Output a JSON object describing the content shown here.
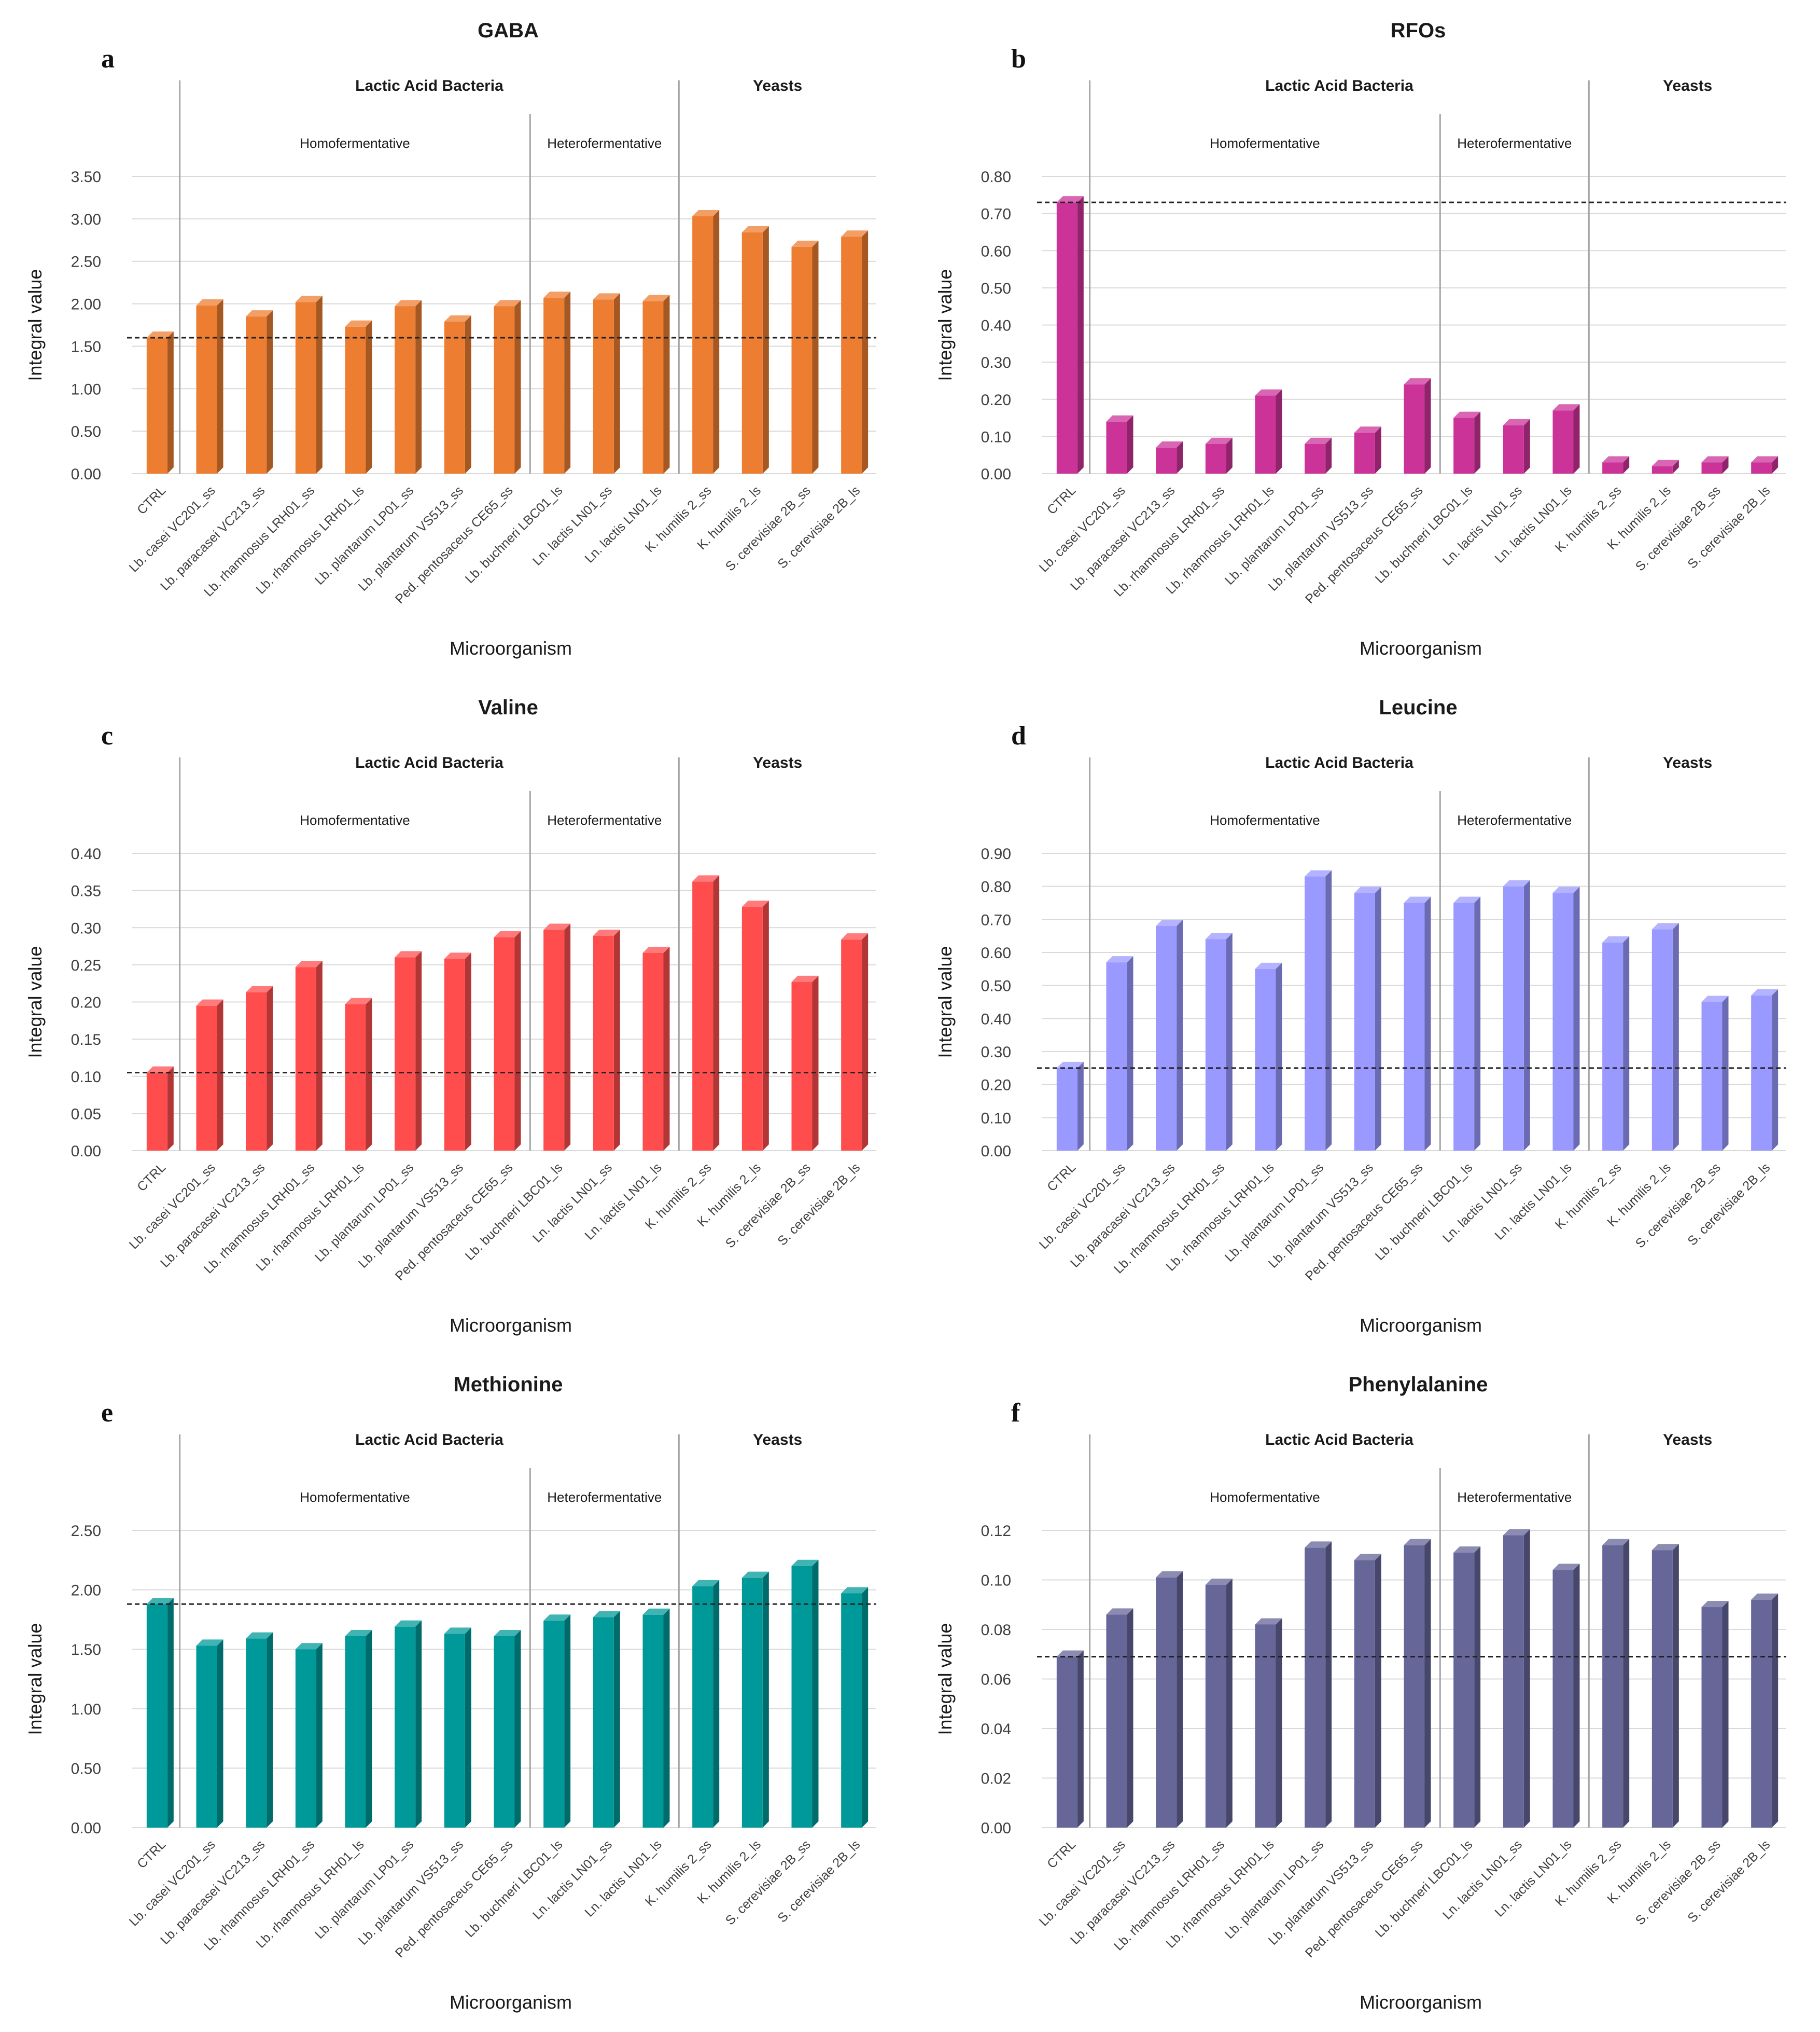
{
  "categories": [
    "CTRL",
    "Lb. casei VC201_ss",
    "Lb. paracasei VC213_ss",
    "Lb. rhamnosus LRH01_ss",
    "Lb. rhamnosus LRH01_ls",
    "Lb. plantarum LP01_ss",
    "Lb. plantarum VS513_ss",
    "Ped. pentosaceus CE65_ss",
    "Lb. buchneri LBC01_ls",
    "Ln. lactis LN01_ss",
    "Ln. lactis LN01_ls",
    "K. humilis 2_ss",
    "K. humilis 2_ls",
    "S. cerevisiae 2B_ss",
    "S. cerevisiae 2B_ls"
  ],
  "group_labels": {
    "lab": "Lactic Acid Bacteria",
    "yeasts": "Yeasts",
    "homo": "Homofermentative",
    "hetero": "Heterofermentative"
  },
  "chart_data": [
    {
      "letter": "a",
      "type": "bar",
      "title": "GABA",
      "xlabel": "Microorganism",
      "ylabel": "Integral value",
      "ylim": [
        0,
        3.5
      ],
      "ticks": [
        "0.00",
        "0.50",
        "1.00",
        "1.50",
        "2.00",
        "2.50",
        "3.00",
        "3.50"
      ],
      "reference_line": 1.6,
      "color": "#ed7d31",
      "values": [
        1.6,
        1.98,
        1.85,
        2.02,
        1.73,
        1.97,
        1.79,
        1.97,
        2.07,
        2.05,
        2.03,
        3.03,
        2.84,
        2.67,
        2.79
      ]
    },
    {
      "letter": "b",
      "type": "bar",
      "title": "RFOs",
      "xlabel": "Microorganism",
      "ylabel": "Integral value",
      "ylim": [
        0,
        0.8
      ],
      "ticks": [
        "0.00",
        "0.10",
        "0.20",
        "0.30",
        "0.40",
        "0.50",
        "0.60",
        "0.70",
        "0.80"
      ],
      "reference_line": 0.73,
      "color": "#cc3399",
      "values": [
        0.73,
        0.14,
        0.07,
        0.08,
        0.21,
        0.08,
        0.11,
        0.24,
        0.15,
        0.13,
        0.17,
        0.03,
        0.02,
        0.03,
        0.03
      ]
    },
    {
      "letter": "c",
      "type": "bar",
      "title": "Valine",
      "xlabel": "Microorganism",
      "ylabel": "Integral value",
      "ylim": [
        0,
        0.4
      ],
      "ticks": [
        "0.00",
        "0.05",
        "0.10",
        "0.15",
        "0.20",
        "0.25",
        "0.30",
        "0.35",
        "0.40"
      ],
      "reference_line": 0.105,
      "color": "#ff4d4d",
      "values": [
        0.105,
        0.195,
        0.213,
        0.247,
        0.197,
        0.26,
        0.258,
        0.287,
        0.297,
        0.289,
        0.266,
        0.362,
        0.328,
        0.227,
        0.284
      ]
    },
    {
      "letter": "d",
      "type": "bar",
      "title": "Leucine",
      "xlabel": "Microorganism",
      "ylabel": "Integral value",
      "ylim": [
        0,
        0.9
      ],
      "ticks": [
        "0.00",
        "0.10",
        "0.20",
        "0.30",
        "0.40",
        "0.50",
        "0.60",
        "0.70",
        "0.80",
        "0.90"
      ],
      "reference_line": 0.25,
      "color": "#9999ff",
      "values": [
        0.25,
        0.57,
        0.68,
        0.64,
        0.55,
        0.83,
        0.78,
        0.75,
        0.75,
        0.8,
        0.78,
        0.63,
        0.67,
        0.45,
        0.47
      ]
    },
    {
      "letter": "e",
      "type": "bar",
      "title": "Methionine",
      "xlabel": "Microorganism",
      "ylabel": "Integral value",
      "ylim": [
        0,
        2.5
      ],
      "ticks": [
        "0.00",
        "0.50",
        "1.00",
        "1.50",
        "2.00",
        "2.50"
      ],
      "reference_line": 1.88,
      "color": "#009999",
      "values": [
        1.88,
        1.53,
        1.59,
        1.5,
        1.61,
        1.69,
        1.63,
        1.61,
        1.74,
        1.77,
        1.79,
        2.03,
        2.1,
        2.2,
        1.97
      ]
    },
    {
      "letter": "f",
      "type": "bar",
      "title": "Phenylalanine",
      "xlabel": "Microorganism",
      "ylabel": "Integral value",
      "ylim": [
        0,
        0.12
      ],
      "ticks": [
        "0.00",
        "0.02",
        "0.04",
        "0.06",
        "0.08",
        "0.10",
        "0.12"
      ],
      "reference_line": 0.069,
      "color": "#666699",
      "values": [
        0.069,
        0.086,
        0.101,
        0.098,
        0.082,
        0.113,
        0.108,
        0.114,
        0.111,
        0.118,
        0.104,
        0.114,
        0.112,
        0.089,
        0.092
      ]
    }
  ]
}
